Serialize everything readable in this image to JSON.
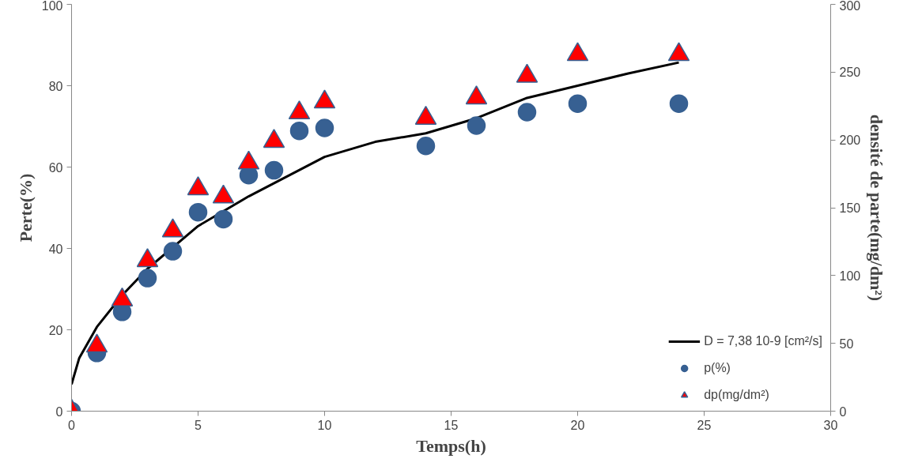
{
  "chart_data": {
    "type": "scatter",
    "xlabel": "Temps(h)",
    "ylabel": "Perte(%)",
    "y2label": "densité de parte(mg/dm²)",
    "xlim": [
      0,
      30
    ],
    "xticks": [
      0,
      5,
      10,
      15,
      20,
      25,
      30
    ],
    "ylim": [
      0,
      100
    ],
    "yticks": [
      0,
      20,
      40,
      60,
      80,
      100
    ],
    "y2lim": [
      0,
      300
    ],
    "y2ticks": [
      0,
      50,
      100,
      150,
      200,
      250,
      300
    ],
    "grid": false,
    "legend": "bottom right",
    "series": [
      {
        "name": "D = 7,38 10-9 [cm²/s]",
        "type": "line",
        "color": "#000000",
        "marker": "none",
        "line_style": "solid",
        "x": [
          0,
          0.3,
          1,
          2,
          3,
          5,
          7,
          10,
          12,
          14,
          16,
          18,
          20,
          22,
          24
        ],
        "values": [
          6.6,
          13,
          20.7,
          28.5,
          35,
          45.5,
          52.8,
          62.5,
          66.2,
          68.3,
          72,
          77,
          80,
          83,
          85.7
        ]
      },
      {
        "name": "p(%)",
        "color": "#376092",
        "marker": "circle",
        "x": [
          0,
          1,
          2,
          3,
          4,
          5,
          6,
          7,
          8,
          9,
          10,
          14,
          16,
          18,
          20,
          24
        ],
        "values": [
          0,
          14.3,
          24.4,
          32.7,
          39.3,
          48.9,
          47.2,
          58,
          59.2,
          68.9,
          69.6,
          65.2,
          70.2,
          73.5,
          75.6,
          75.6
        ]
      },
      {
        "name": "dp(mg/dm²)",
        "axis": "y2",
        "color": "#ff0000",
        "marker": "triangle",
        "x": [
          0,
          1,
          2,
          3,
          4,
          5,
          6,
          7,
          8,
          9,
          10,
          14,
          16,
          18,
          20,
          24
        ],
        "values": [
          0,
          48,
          82,
          111,
          133,
          164,
          158,
          183,
          199,
          220,
          228,
          216,
          231,
          247,
          263,
          263
        ]
      }
    ]
  }
}
